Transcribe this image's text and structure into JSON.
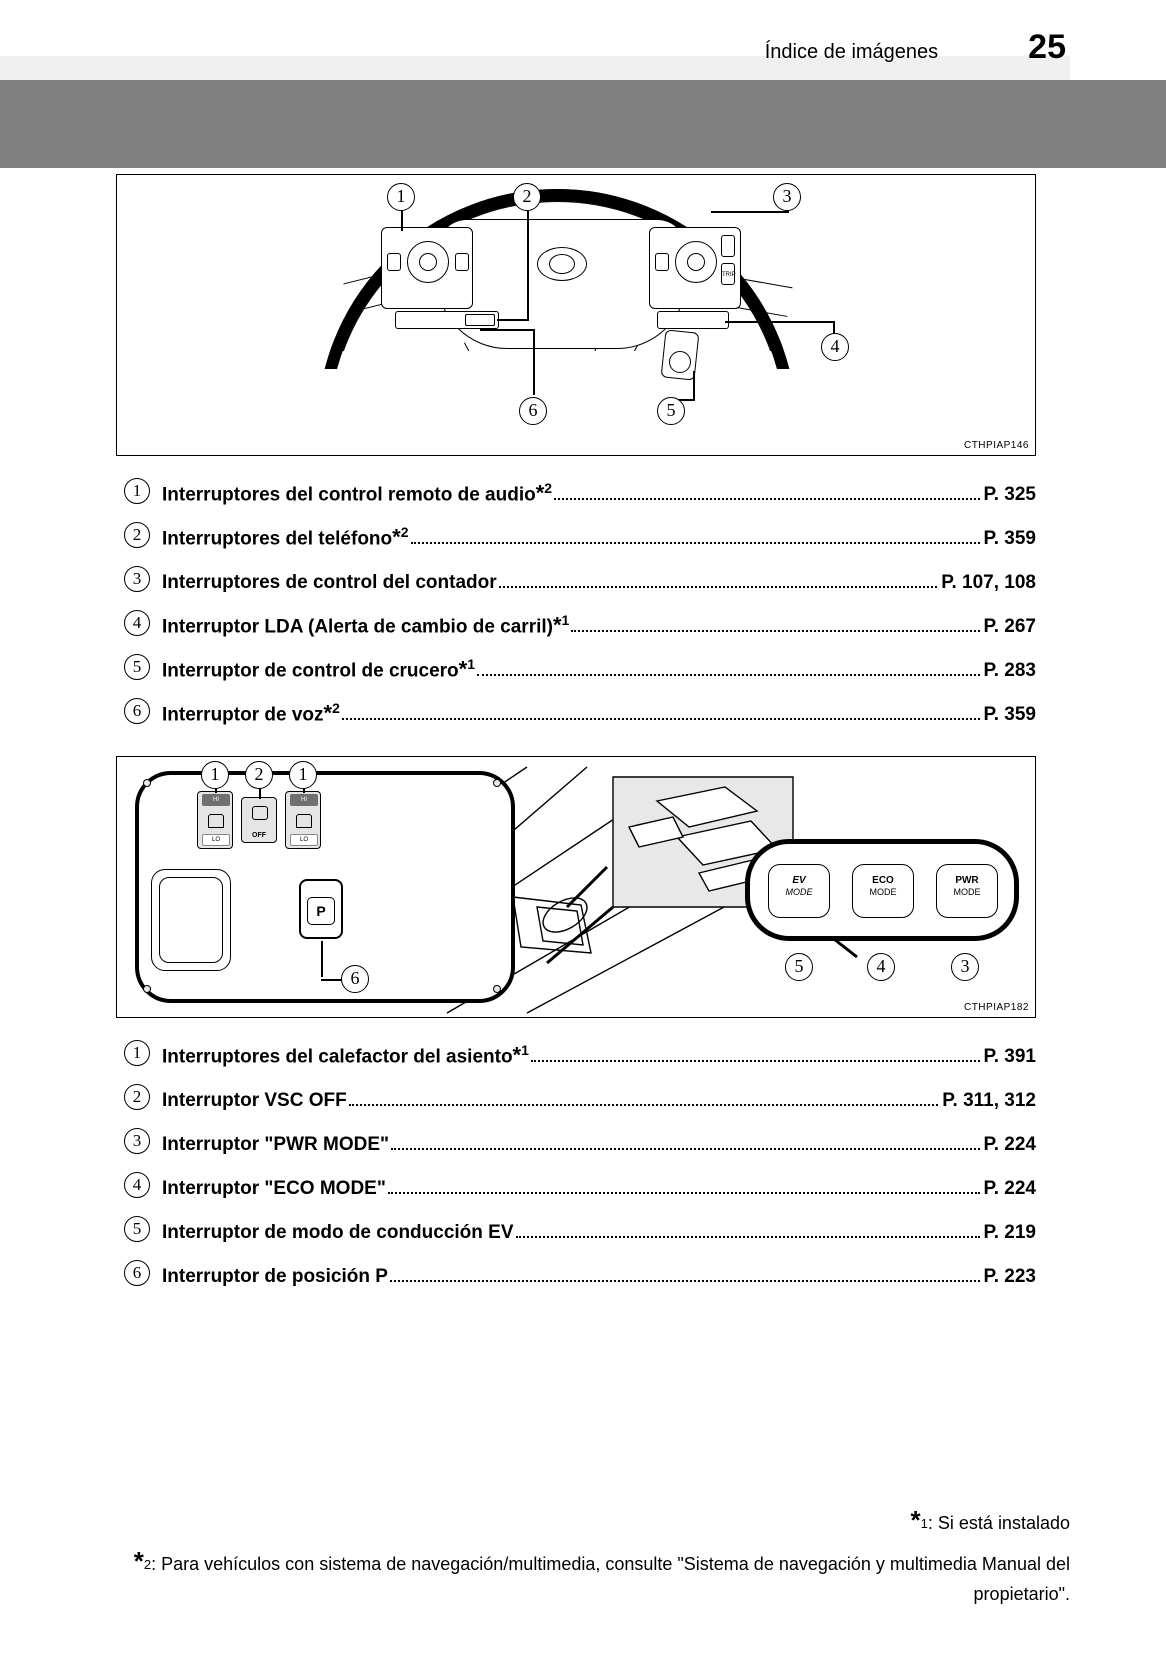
{
  "header": {
    "section_title": "Índice de imágenes",
    "page_number": "25"
  },
  "colors": {
    "gray_bar": "#808080",
    "light_strip": "#f0f0f0",
    "page_bg": "#ffffff",
    "text": "#000000"
  },
  "figure1": {
    "image_id": "CTHPIAP146",
    "callouts": [
      "1",
      "2",
      "3",
      "4",
      "5",
      "6"
    ]
  },
  "list1": [
    {
      "num": "1",
      "label": "Interruptores del control remoto de audio",
      "note": "*2",
      "page": "P. 325"
    },
    {
      "num": "2",
      "label": "Interruptores del teléfono",
      "note": "*2",
      "page": "P. 359"
    },
    {
      "num": "3",
      "label": "Interruptores de control del contador",
      "note": "",
      "page": "P. 107, 108"
    },
    {
      "num": "4",
      "label": "Interruptor LDA (Alerta de cambio de carril)",
      "note": "*1",
      "page": "P. 267"
    },
    {
      "num": "5",
      "label": "Interruptor de control de crucero",
      "note": "*1",
      "page": "P. 283"
    },
    {
      "num": "6",
      "label": "Interruptor de voz",
      "note": "*2",
      "page": "P. 359"
    }
  ],
  "figure2": {
    "image_id": "CTHPIAP182",
    "callouts": [
      "1",
      "2",
      "1",
      "5",
      "4",
      "3",
      "6"
    ],
    "p_button_label": "P",
    "modes": {
      "ev": {
        "line1": "EV",
        "line2": "MODE"
      },
      "eco": {
        "line1": "ECO",
        "line2": "MODE"
      },
      "pwr": {
        "line1": "PWR",
        "line2": "MODE"
      }
    }
  },
  "list2": [
    {
      "num": "1",
      "label": "Interruptores del calefactor del asiento",
      "note": "*1",
      "page": "P. 391"
    },
    {
      "num": "2",
      "label": "Interruptor VSC OFF",
      "note": "",
      "page": "P. 311, 312"
    },
    {
      "num": "3",
      "label": "Interruptor \"PWR MODE\"",
      "note": "",
      "page": "P. 224"
    },
    {
      "num": "4",
      "label": "Interruptor \"ECO MODE\"",
      "note": "",
      "page": "P. 224"
    },
    {
      "num": "5",
      "label": "Interruptor de modo de conducción EV",
      "note": "",
      "page": "P. 219"
    },
    {
      "num": "6",
      "label": "Interruptor de posición P",
      "note": "",
      "page": "P. 223"
    }
  ],
  "footnotes": {
    "fn1": ": Si está instalado",
    "fn2": ": Para vehículos con sistema de navegación/multimedia, consulte \"Sistema de navegación y multimedia Manual del propietario\"."
  }
}
